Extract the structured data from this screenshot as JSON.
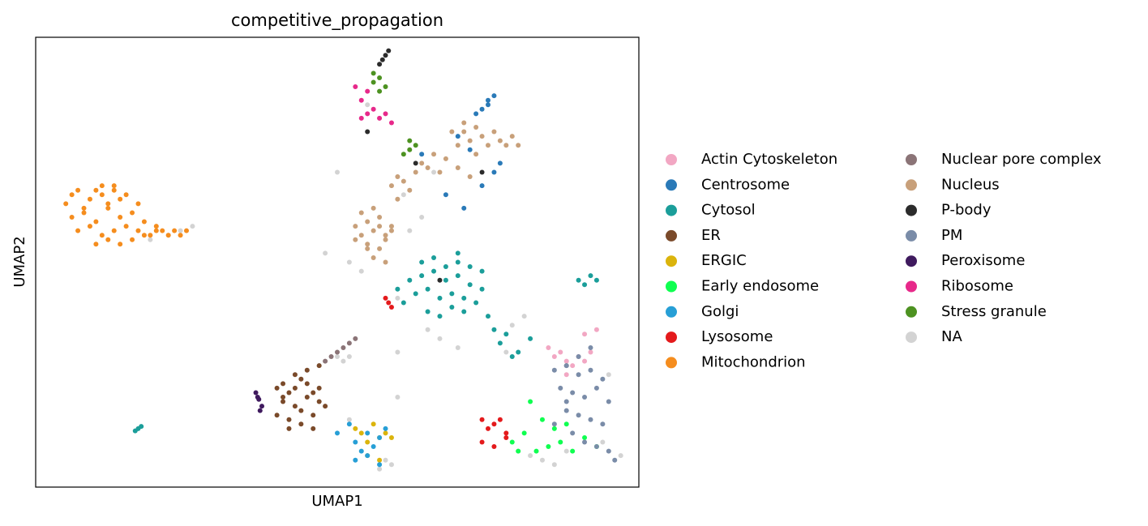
{
  "chart_data": {
    "type": "scatter",
    "title": "competitive_propagation",
    "x_label": "UMAP1",
    "y_label": "UMAP2",
    "xlim": [
      0,
      100
    ],
    "ylim": [
      0,
      100
    ],
    "legend": "outside right",
    "series": [
      {
        "name": "Actin Cytoskeleton",
        "color": "#f2a7c3",
        "x": [
          85,
          86,
          87,
          88,
          89,
          90,
          91,
          92,
          91,
          88,
          93
        ],
        "y": [
          31,
          29,
          30,
          28,
          27,
          29,
          28,
          30,
          34,
          25,
          35
        ]
      },
      {
        "name": "Centrosome",
        "color": "#2a7ab8",
        "x": [
          74,
          75,
          76,
          75,
          73,
          72,
          70,
          77,
          68,
          76,
          64,
          71,
          74
        ],
        "y": [
          84,
          86,
          87,
          85,
          83,
          75,
          78,
          72,
          65,
          70,
          74,
          62,
          67
        ]
      },
      {
        "name": "Cytosol",
        "color": "#1b9e9a",
        "x": [
          62,
          64,
          66,
          68,
          70,
          72,
          74,
          63,
          65,
          67,
          69,
          71,
          73,
          64,
          66,
          68,
          70,
          72,
          65,
          67,
          69,
          71,
          61,
          75,
          76,
          77,
          78,
          80,
          82,
          79,
          90,
          91,
          92,
          93,
          16.5,
          17,
          17.5,
          60,
          74,
          70
        ],
        "y": [
          46,
          47,
          48,
          46,
          47,
          45,
          44,
          43,
          44,
          42,
          43,
          42,
          41,
          50,
          51,
          49,
          50,
          49,
          39,
          38,
          40,
          39,
          41,
          38,
          35,
          32,
          34,
          30,
          33,
          29,
          46,
          45,
          47,
          46,
          12.5,
          13,
          13.5,
          44,
          48,
          52
        ]
      },
      {
        "name": "ER",
        "color": "#7a4a2a",
        "x": [
          40,
          41,
          42,
          43,
          44,
          45,
          46,
          47,
          41,
          43,
          45,
          47,
          40,
          42,
          44,
          46,
          48,
          42,
          44,
          46,
          43,
          45,
          47,
          41
        ],
        "y": [
          22,
          23,
          21,
          22,
          24,
          23,
          21,
          22,
          19,
          18,
          20,
          19,
          16,
          15,
          17,
          16,
          18,
          13,
          14,
          13,
          25,
          26,
          27,
          20
        ]
      },
      {
        "name": "ERGIC",
        "color": "#dbb40c",
        "x": [
          53,
          54,
          55,
          56,
          57,
          58,
          59,
          55,
          57
        ],
        "y": [
          13,
          12,
          10,
          14,
          11,
          12,
          11,
          7,
          6
        ]
      },
      {
        "name": "Early endosome",
        "color": "#0fff50",
        "x": [
          79,
          81,
          83,
          85,
          87,
          89,
          91,
          93,
          84,
          86,
          88,
          80,
          82
        ],
        "y": [
          10,
          12,
          8,
          9,
          10,
          8,
          11,
          9,
          15,
          13,
          14,
          8,
          19
        ]
      },
      {
        "name": "Golgi",
        "color": "#279fd6",
        "x": [
          52,
          53,
          54,
          55,
          56,
          57,
          58,
          53,
          55,
          57,
          50
        ],
        "y": [
          14,
          10,
          8,
          12,
          9,
          11,
          13,
          6,
          7,
          5,
          12
        ]
      },
      {
        "name": "Lysosome",
        "color": "#e41a1c",
        "x": [
          74,
          75,
          76,
          77,
          78,
          74,
          76,
          78,
          58.5,
          59,
          58
        ],
        "y": [
          15,
          13,
          14,
          15,
          12,
          10,
          9,
          11,
          41,
          40,
          42
        ]
      },
      {
        "name": "Mitochondrion",
        "color": "#f58d1e",
        "x": [
          5,
          6,
          7,
          8,
          9,
          10,
          11,
          12,
          13,
          14,
          6,
          8,
          10,
          12,
          14,
          16,
          7,
          9,
          11,
          13,
          15,
          17,
          18,
          19,
          20,
          21,
          22,
          23,
          24,
          25,
          10,
          12,
          14,
          16,
          18,
          20,
          11,
          13,
          15,
          17
        ],
        "y": [
          63,
          65,
          66,
          62,
          64,
          66,
          65,
          63,
          66,
          64,
          60,
          61,
          59,
          62,
          60,
          61,
          57,
          58,
          56,
          57,
          58,
          57,
          59,
          56,
          58,
          57,
          56,
          57,
          56,
          57,
          54,
          55,
          54,
          55,
          56,
          57,
          67,
          67,
          65,
          63
        ]
      },
      {
        "name": "Nuclear pore complex",
        "color": "#8b7477",
        "x": [
          50,
          51,
          52,
          49,
          48,
          53,
          88
        ],
        "y": [
          30,
          31,
          32,
          29,
          28,
          33,
          27
        ]
      },
      {
        "name": "Nucleus",
        "color": "#c8a07a",
        "x": [
          53,
          54,
          55,
          56,
          57,
          58,
          59,
          54,
          55,
          56,
          57,
          58,
          53,
          55,
          57,
          59,
          56,
          58,
          60,
          62,
          61,
          64,
          66,
          68,
          70,
          71,
          72,
          73,
          74,
          75,
          76,
          77,
          78,
          79,
          80,
          69,
          71,
          73,
          63,
          65,
          67,
          59,
          60,
          70,
          72
        ],
        "y": [
          58,
          56,
          59,
          57,
          60,
          55,
          57,
          61,
          54,
          62,
          58,
          56,
          55,
          53,
          53,
          58,
          51,
          50,
          64,
          66,
          68,
          72,
          74,
          73,
          76,
          79,
          77,
          80,
          78,
          76,
          79,
          77,
          76,
          78,
          76,
          79,
          81,
          74,
          70,
          71,
          70,
          67,
          69,
          71,
          69
        ]
      },
      {
        "name": "P-body",
        "color": "#2b2b2b",
        "x": [
          57,
          57.5,
          58,
          58.5,
          55,
          63,
          74,
          67
        ],
        "y": [
          94,
          95,
          96,
          97,
          79,
          72,
          70,
          46
        ]
      },
      {
        "name": "PM",
        "color": "#7a8ca8",
        "x": [
          86,
          88,
          90,
          92,
          94,
          87,
          89,
          91,
          93,
          95,
          88,
          90,
          92,
          94,
          89,
          91,
          93,
          95,
          96,
          90,
          92,
          88,
          86
        ],
        "y": [
          26,
          27,
          25,
          26,
          24,
          22,
          21,
          20,
          22,
          19,
          17,
          16,
          15,
          14,
          12,
          10,
          9,
          8,
          6,
          29,
          31,
          19,
          14
        ]
      },
      {
        "name": "Peroxisome",
        "color": "#3f1a5e",
        "x": [
          36.5,
          37,
          37.5,
          36.8,
          37.2
        ],
        "y": [
          21,
          19.5,
          18,
          20,
          17
        ]
      },
      {
        "name": "Ribosome",
        "color": "#e7298a",
        "x": [
          54,
          55,
          56,
          57,
          58,
          55,
          53,
          59,
          54
        ],
        "y": [
          82,
          83,
          84,
          82,
          83,
          88,
          89,
          81,
          86
        ]
      },
      {
        "name": "Stress granule",
        "color": "#4d9221",
        "x": [
          56,
          57,
          58,
          57,
          56,
          62,
          63,
          61,
          62
        ],
        "y": [
          90,
          91,
          89,
          88,
          92,
          75,
          76,
          74,
          77
        ]
      },
      {
        "name": "NA",
        "color": "#d3d3d3",
        "x": [
          24,
          26,
          22,
          19,
          51,
          52,
          60,
          62,
          45,
          47,
          50,
          52,
          57,
          58,
          60,
          65,
          67,
          70,
          80,
          82,
          84,
          86,
          88,
          94,
          95,
          97,
          78,
          79,
          81,
          52,
          54,
          60,
          64,
          66,
          61,
          55,
          57,
          50,
          48,
          59
        ],
        "y": [
          57,
          58,
          56,
          55,
          28,
          29,
          30,
          57,
          26,
          27,
          29,
          15,
          4,
          6,
          20,
          35,
          33,
          31,
          8,
          7,
          6,
          5,
          8,
          10,
          25,
          7,
          30,
          36,
          38,
          50,
          48,
          42,
          60,
          70,
          65,
          85,
          82,
          70,
          52,
          5
        ]
      }
    ]
  }
}
